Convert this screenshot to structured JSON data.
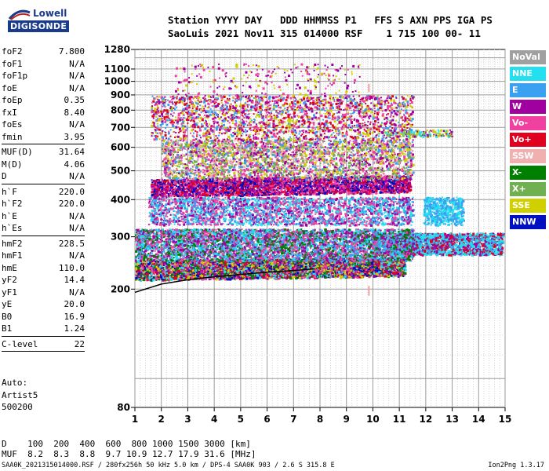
{
  "logo": {
    "top": "Lowell",
    "bottom": "DIGISONDE"
  },
  "header": {
    "line1": "Station YYYY DAY   DDD HHMMSS P1   FFS S AXN PPS IGA PS",
    "line2": "SaoLuis 2021 Nov11 315 014000 RSF    1 715 100 00- 11"
  },
  "params": [
    {
      "k": "foF2",
      "v": "7.800"
    },
    {
      "k": "foF1",
      "v": "N/A"
    },
    {
      "k": "foF1p",
      "v": "N/A"
    },
    {
      "k": "foE",
      "v": "N/A"
    },
    {
      "k": "foEp",
      "v": "0.35"
    },
    {
      "k": "fxI",
      "v": "8.40"
    },
    {
      "k": "foEs",
      "v": "N/A"
    },
    {
      "k": "fmin",
      "v": "3.95"
    },
    {
      "sep": true
    },
    {
      "k": "MUF(D)",
      "v": "31.64"
    },
    {
      "k": "M(D)",
      "v": "4.06"
    },
    {
      "k": "D",
      "v": "N/A"
    },
    {
      "sep": true
    },
    {
      "k": "h`F",
      "v": "220.0"
    },
    {
      "k": "h`F2",
      "v": "220.0"
    },
    {
      "k": "h`E",
      "v": "N/A"
    },
    {
      "k": "h`Es",
      "v": "N/A"
    },
    {
      "sep": true
    },
    {
      "k": "hmF2",
      "v": "228.5"
    },
    {
      "k": "hmF1",
      "v": "N/A"
    },
    {
      "k": "hmE",
      "v": "110.0"
    },
    {
      "k": "yF2",
      "v": "14.4"
    },
    {
      "k": "yF1",
      "v": "N/A"
    },
    {
      "k": "yE",
      "v": "20.0"
    },
    {
      "k": "B0",
      "v": "16.9"
    },
    {
      "k": "B1",
      "v": "1.24"
    },
    {
      "sep": true
    },
    {
      "k": "C-level",
      "v": "22"
    },
    {
      "sep": true
    }
  ],
  "auto": [
    "Auto:",
    "Artist5",
    "500200"
  ],
  "footer": {
    "d_line": "D    100  200  400  600  800 1000 1500 3000 [km]",
    "muf_line": "MUF  8.2  8.3  8.8  9.7 10.9 12.7 17.9 31.6 [MHz]",
    "file_line": "SAA0K_2021315014000.RSF / 280fx256h 50 kHz 5.0 km / DPS-4 SAA0K 903 / 2.6 S 315.8 E",
    "version": "Ion2Png 1.3.17"
  },
  "legend": [
    {
      "label": "NoVal",
      "color": "#a0a0a0"
    },
    {
      "label": "NNE",
      "color": "#22e0f0"
    },
    {
      "label": "E",
      "color": "#3aa0f0"
    },
    {
      "label": "W",
      "color": "#a000a0"
    },
    {
      "label": "Vo-",
      "color": "#f040a0"
    },
    {
      "label": "Vo+",
      "color": "#e00020"
    },
    {
      "label": "SSW",
      "color": "#f0b0b0"
    },
    {
      "label": "X-",
      "color": "#008000"
    },
    {
      "label": "X+",
      "color": "#70b050"
    },
    {
      "label": "SSE",
      "color": "#d0d000"
    },
    {
      "label": "NNW",
      "color": "#0010c0"
    }
  ],
  "chart_data": {
    "type": "scatter",
    "xlim": [
      1,
      15
    ],
    "ylim": [
      80,
      1280
    ],
    "yscale": "log",
    "x_ticks": [
      "1",
      "2",
      "3",
      "4",
      "5",
      "6",
      "7",
      "8",
      "9",
      "10",
      "11",
      "12",
      "13",
      "14",
      "15"
    ],
    "y_ticks": [
      {
        "v": 80,
        "label": "80"
      },
      {
        "v": 200,
        "label": "200"
      },
      {
        "v": 300,
        "label": "300"
      },
      {
        "v": 400,
        "label": "400"
      },
      {
        "v": 500,
        "label": "500"
      },
      {
        "v": 600,
        "label": "600"
      },
      {
        "v": 700,
        "label": "700"
      },
      {
        "v": 800,
        "label": "800"
      },
      {
        "v": 900,
        "label": "900"
      },
      {
        "v": 1000,
        "label": "1000"
      },
      {
        "v": 1100,
        "label": "1100"
      },
      {
        "v": 1280,
        "label": "1280"
      }
    ],
    "grid": true,
    "legend": "right",
    "trace_profile": {
      "color": "#000000",
      "x": [
        1.0,
        2.0,
        3.0,
        4.0,
        5.0,
        6.0,
        7.0,
        7.8
      ],
      "y": [
        195,
        208,
        215,
        220,
        224,
        228,
        231,
        234
      ]
    },
    "marker_x": 9.85,
    "marker_color": "#f0a0a0",
    "marker_y": [
      [
        920,
        980
      ],
      [
        190,
        205
      ]
    ],
    "clusters": [
      {
        "name": "F-layer 1st hop",
        "x0": 1.0,
        "x1": 11.2,
        "y0": 215,
        "y1": 250,
        "density": 28,
        "colors": [
          "#0010c0",
          "#a000a0",
          "#e00020",
          "#22e0f0",
          "#008000",
          "#d0d000",
          "#f040a0"
        ],
        "slope": 0.4
      },
      {
        "name": "F-layer 1st hop ext",
        "x0": 10.0,
        "x1": 14.9,
        "y0": 262,
        "y1": 310,
        "density": 22,
        "colors": [
          "#22e0f0",
          "#22e0f0",
          "#3aa0f0",
          "#e00020",
          "#a000a0"
        ],
        "slope": 0.0
      },
      {
        "name": "Diffuse 300",
        "x0": 1.0,
        "x1": 11.5,
        "y0": 250,
        "y1": 320,
        "density": 16,
        "colors": [
          "#3aa0f0",
          "#22e0f0",
          "#a000a0",
          "#008000",
          "#f040a0"
        ],
        "slope": 0.0
      },
      {
        "name": "2nd hop",
        "x0": 1.6,
        "x1": 11.4,
        "y0": 410,
        "y1": 470,
        "density": 18,
        "colors": [
          "#0010c0",
          "#a000a0",
          "#e00020",
          "#f040a0"
        ],
        "slope": 0.5
      },
      {
        "name": "2nd hop spread",
        "x0": 2.0,
        "x1": 11.5,
        "y0": 470,
        "y1": 640,
        "density": 8,
        "colors": [
          "#a000a0",
          "#f040a0",
          "#d0d000",
          "#3aa0f0",
          "#f0b0b0",
          "#70b050"
        ],
        "slope": 0.0
      },
      {
        "name": "3rd hop",
        "x0": 1.6,
        "x1": 11.5,
        "y0": 640,
        "y1": 900,
        "density": 5,
        "colors": [
          "#a000a0",
          "#f040a0",
          "#3aa0f0",
          "#d0d000",
          "#e00020"
        ],
        "slope": 0.0
      },
      {
        "name": "Mid band 400",
        "x0": 1.5,
        "x1": 11.5,
        "y0": 330,
        "y1": 410,
        "density": 9,
        "colors": [
          "#22e0f0",
          "#3aa0f0",
          "#a000a0",
          "#f040a0"
        ],
        "slope": 0.0
      },
      {
        "name": "Right 400 cloud",
        "x0": 11.9,
        "x1": 13.4,
        "y0": 330,
        "y1": 410,
        "density": 12,
        "colors": [
          "#22e0f0",
          "#3aa0f0"
        ],
        "slope": 0.0
      },
      {
        "name": "Right 680",
        "x0": 10.3,
        "x1": 13.0,
        "y0": 655,
        "y1": 690,
        "density": 9,
        "colors": [
          "#d0d000",
          "#70b050",
          "#a000a0",
          "#22e0f0"
        ],
        "slope": 0.0
      },
      {
        "name": "Sparse high",
        "x0": 2.5,
        "x1": 9.5,
        "y0": 900,
        "y1": 1150,
        "density": 1,
        "colors": [
          "#a000a0",
          "#d0d000",
          "#f040a0"
        ],
        "slope": 0.0
      }
    ]
  }
}
